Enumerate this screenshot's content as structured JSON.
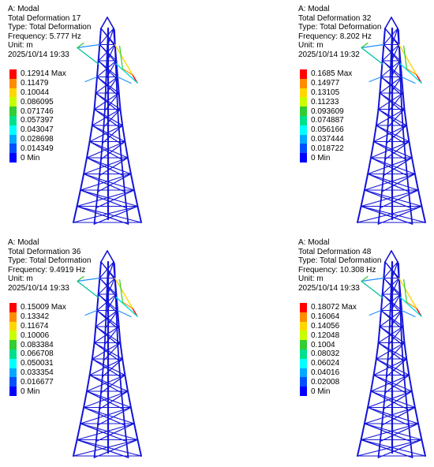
{
  "panels": [
    {
      "analysis": "A: Modal",
      "result": "Total Deformation 17",
      "type": "Type: Total Deformation",
      "frequency": "Frequency: 5.777 Hz",
      "unit": "Unit: m",
      "timestamp": "2025/10/14 19:33",
      "legend": [
        "0.12914 Max",
        "0.11479",
        "0.10044",
        "0.086095",
        "0.071746",
        "0.057397",
        "0.043047",
        "0.028698",
        "0.014349",
        "0 Min"
      ]
    },
    {
      "analysis": "A: Modal",
      "result": "Total Deformation 32",
      "type": "Type: Total Deformation",
      "frequency": "Frequency: 8.202 Hz",
      "unit": "Unit: m",
      "timestamp": "2025/10/14 19:32",
      "legend": [
        "0.1685 Max",
        "0.14977",
        "0.13105",
        "0.11233",
        "0.093609",
        "0.074887",
        "0.056166",
        "0.037444",
        "0.018722",
        "0 Min"
      ]
    },
    {
      "analysis": "A: Modal",
      "result": "Total Deformation 36",
      "type": "Type: Total Deformation",
      "frequency": "Frequency: 9.4919 Hz",
      "unit": "Unit: m",
      "timestamp": "2025/10/14 19:33",
      "legend": [
        "0.15009 Max",
        "0.13342",
        "0.11674",
        "0.10006",
        "0.083384",
        "0.066708",
        "0.050031",
        "0.033354",
        "0.016677",
        "0 Min"
      ]
    },
    {
      "analysis": "A: Modal",
      "result": "Total Deformation 48",
      "type": "Type: Total Deformation",
      "frequency": "Frequency: 10.308 Hz",
      "unit": "Unit: m",
      "timestamp": "2025/10/14 19:33",
      "legend": [
        "0.18072 Max",
        "0.16064",
        "0.14056",
        "0.12048",
        "0.1004",
        "0.08032",
        "0.06024",
        "0.04016",
        "0.02008",
        "0 Min"
      ]
    }
  ],
  "legend_colors": [
    "#ff0000",
    "#ff8c00",
    "#ffd700",
    "#c8ff00",
    "#32cd32",
    "#00e08c",
    "#00ffff",
    "#00a8ff",
    "#0050ff",
    "#0000ff"
  ]
}
